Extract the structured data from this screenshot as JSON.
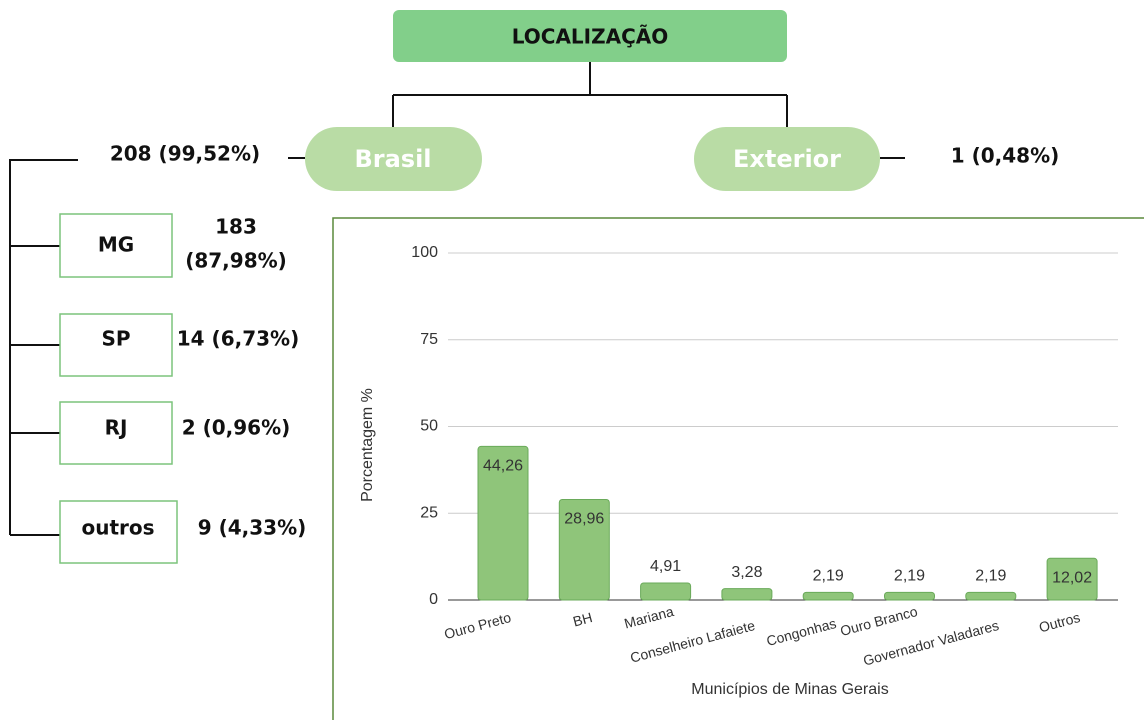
{
  "diagram": {
    "title": "LOCALIZAÇÃO",
    "branches": [
      {
        "label": "Brasil",
        "value_label": "208 (99,52%)"
      },
      {
        "label": "Exterior",
        "value_label": "1 (0,48%)"
      }
    ],
    "states": [
      {
        "label": "MG",
        "value_label": [
          "183",
          "(87,98%)"
        ]
      },
      {
        "label": "SP",
        "value_label": [
          "14 (6,73%)"
        ]
      },
      {
        "label": "RJ",
        "value_label": [
          "2 (0,96%)"
        ]
      },
      {
        "label": "outros",
        "value_label": [
          "9 (4,33%)"
        ]
      }
    ]
  },
  "chart_data": {
    "type": "bar",
    "x_label": "Municípios de Minas Gerais",
    "y_label": "Porcentagem %",
    "categories": [
      "Ouro Preto",
      "BH",
      "Mariana",
      "Conselheiro Lafaiete",
      "Congonhas",
      "Ouro Branco",
      "Governador Valadares",
      "Outros"
    ],
    "values": [
      44.26,
      28.96,
      4.91,
      3.28,
      2.19,
      2.19,
      2.19,
      12.02
    ],
    "value_labels": [
      "44,26",
      "28,96",
      "4,91",
      "3,28",
      "2,19",
      "2,19",
      "2,19",
      "12,02"
    ],
    "color": "#8fc57a",
    "ylim": [
      0,
      100
    ],
    "yticks": [
      0,
      25,
      50,
      75,
      100
    ],
    "grid": true
  }
}
